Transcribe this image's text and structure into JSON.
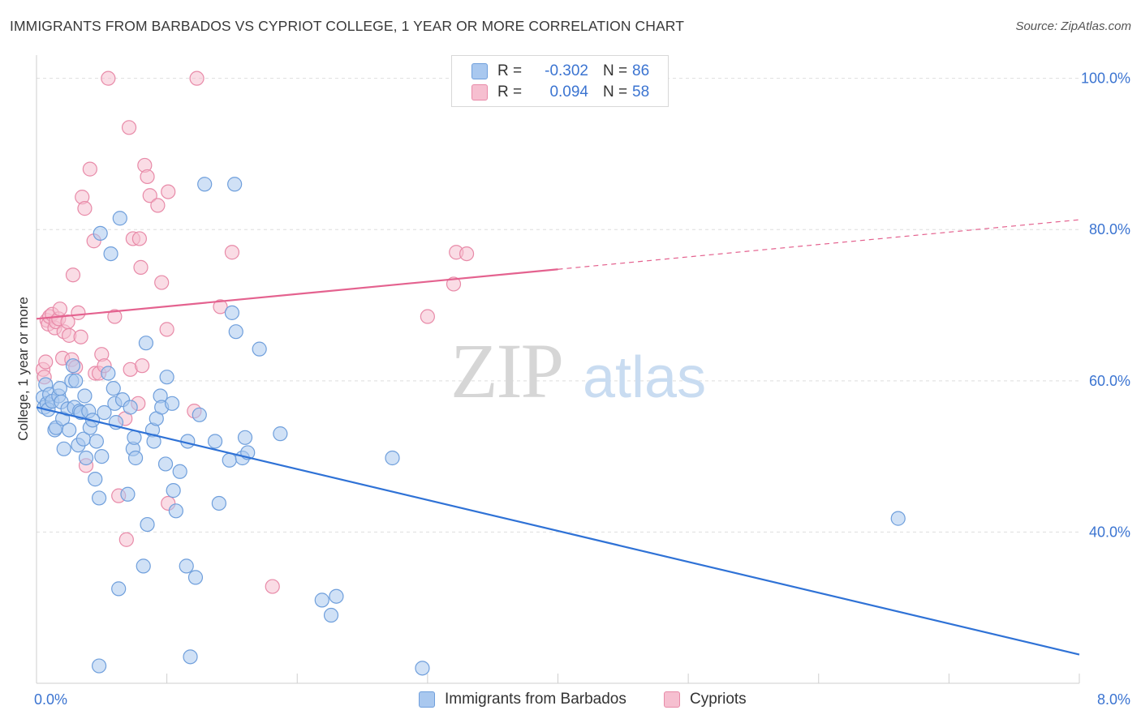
{
  "title": "IMMIGRANTS FROM BARBADOS VS CYPRIOT COLLEGE, 1 YEAR OR MORE CORRELATION CHART",
  "source": "Source: ZipAtlas.com",
  "watermark": {
    "zip": "ZIP",
    "atlas": "atlas"
  },
  "colors": {
    "blue_fill": "#a9c8ef",
    "blue_stroke": "#6f9fdc",
    "blue_line": "#2f72d6",
    "pink_fill": "#f6bfd0",
    "pink_stroke": "#e88aa8",
    "pink_line": "#e4628f",
    "value_text": "#3b74d1",
    "grid": "#dedede"
  },
  "legend": {
    "rows": [
      {
        "r_label": "R =",
        "r_value": "-0.302",
        "n_label": "N =",
        "n_value": "86"
      },
      {
        "r_label": "R =",
        "r_value": "0.094",
        "n_label": "N =",
        "n_value": "58"
      }
    ]
  },
  "bottom_legend": [
    "Immigrants from Barbados",
    "Cypriots"
  ],
  "chart_data": {
    "type": "scatter",
    "title": "IMMIGRANTS FROM BARBADOS VS CYPRIOT COLLEGE, 1 YEAR OR MORE CORRELATION CHART",
    "xlabel": "",
    "ylabel": "College, 1 year or more",
    "xlim": [
      0,
      8
    ],
    "ylim": [
      20,
      102
    ],
    "x_tick_labels": [
      "0.0%",
      "8.0%"
    ],
    "y_ticks": [
      40,
      60,
      80,
      100
    ],
    "y_tick_labels": [
      "40.0%",
      "60.0%",
      "80.0%",
      "100.0%"
    ],
    "series": [
      {
        "name": "Immigrants from Barbados",
        "color": "blue",
        "R": -0.302,
        "N": 86,
        "trend": {
          "x0": 0.0,
          "y0": 56.5,
          "x1": 8.0,
          "y1": 23.8,
          "solid_to": 8.0
        },
        "points": [
          [
            0.05,
            57.8
          ],
          [
            0.06,
            56.5
          ],
          [
            0.07,
            59.5
          ],
          [
            0.08,
            57.0
          ],
          [
            0.09,
            56.2
          ],
          [
            0.1,
            58.2
          ],
          [
            0.12,
            57.3
          ],
          [
            0.14,
            53.5
          ],
          [
            0.15,
            53.8
          ],
          [
            0.17,
            58.0
          ],
          [
            0.18,
            59.0
          ],
          [
            0.19,
            57.2
          ],
          [
            0.2,
            55.0
          ],
          [
            0.21,
            51.0
          ],
          [
            0.24,
            56.3
          ],
          [
            0.25,
            53.5
          ],
          [
            0.27,
            60.0
          ],
          [
            0.28,
            62.0
          ],
          [
            0.29,
            56.5
          ],
          [
            0.3,
            60.0
          ],
          [
            0.32,
            51.5
          ],
          [
            0.33,
            56.0
          ],
          [
            0.34,
            55.8
          ],
          [
            0.36,
            52.3
          ],
          [
            0.37,
            58.0
          ],
          [
            0.38,
            49.8
          ],
          [
            0.4,
            56.0
          ],
          [
            0.41,
            53.8
          ],
          [
            0.43,
            54.8
          ],
          [
            0.45,
            47.0
          ],
          [
            0.46,
            52.0
          ],
          [
            0.48,
            44.5
          ],
          [
            0.49,
            79.5
          ],
          [
            0.5,
            50.0
          ],
          [
            0.52,
            55.8
          ],
          [
            0.55,
            61.0
          ],
          [
            0.57,
            76.8
          ],
          [
            0.59,
            59.0
          ],
          [
            0.6,
            57.0
          ],
          [
            0.61,
            54.5
          ],
          [
            0.63,
            32.5
          ],
          [
            0.64,
            81.5
          ],
          [
            0.66,
            57.5
          ],
          [
            0.7,
            45.0
          ],
          [
            0.72,
            56.5
          ],
          [
            0.74,
            51.0
          ],
          [
            0.75,
            52.5
          ],
          [
            0.76,
            49.8
          ],
          [
            0.82,
            35.5
          ],
          [
            0.84,
            65.0
          ],
          [
            0.85,
            41.0
          ],
          [
            0.89,
            53.5
          ],
          [
            0.9,
            52.0
          ],
          [
            0.92,
            55.0
          ],
          [
            0.95,
            58.0
          ],
          [
            0.96,
            56.5
          ],
          [
            0.99,
            49.0
          ],
          [
            1.0,
            60.5
          ],
          [
            1.04,
            57.0
          ],
          [
            1.05,
            45.5
          ],
          [
            1.07,
            42.8
          ],
          [
            1.1,
            48.0
          ],
          [
            1.15,
            35.5
          ],
          [
            1.16,
            52.0
          ],
          [
            1.18,
            23.5
          ],
          [
            1.22,
            34.0
          ],
          [
            1.25,
            55.5
          ],
          [
            1.29,
            86.0
          ],
          [
            1.37,
            52.0
          ],
          [
            1.4,
            43.8
          ],
          [
            1.48,
            49.5
          ],
          [
            1.5,
            69.0
          ],
          [
            1.52,
            86.0
          ],
          [
            1.53,
            66.5
          ],
          [
            1.58,
            49.8
          ],
          [
            1.6,
            52.5
          ],
          [
            1.62,
            50.5
          ],
          [
            1.71,
            64.2
          ],
          [
            1.87,
            53.0
          ],
          [
            2.19,
            31.0
          ],
          [
            2.26,
            29.0
          ],
          [
            2.3,
            31.5
          ],
          [
            2.73,
            49.8
          ],
          [
            2.96,
            22.0
          ],
          [
            6.61,
            41.8
          ],
          [
            0.48,
            22.3
          ]
        ]
      },
      {
        "name": "Cypriots",
        "color": "pink",
        "R": 0.094,
        "N": 58,
        "trend": {
          "x0": 0.0,
          "y0": 68.2,
          "x1": 8.0,
          "y1": 81.3,
          "solid_to": 4.0
        },
        "points": [
          [
            0.05,
            61.5
          ],
          [
            0.06,
            60.5
          ],
          [
            0.07,
            62.5
          ],
          [
            0.08,
            68.0
          ],
          [
            0.09,
            67.5
          ],
          [
            0.1,
            68.5
          ],
          [
            0.12,
            68.8
          ],
          [
            0.14,
            67.0
          ],
          [
            0.15,
            67.8
          ],
          [
            0.17,
            68.2
          ],
          [
            0.18,
            69.5
          ],
          [
            0.2,
            63.0
          ],
          [
            0.21,
            66.5
          ],
          [
            0.24,
            67.8
          ],
          [
            0.25,
            66.0
          ],
          [
            0.27,
            62.8
          ],
          [
            0.28,
            74.0
          ],
          [
            0.3,
            61.8
          ],
          [
            0.32,
            69.0
          ],
          [
            0.34,
            65.8
          ],
          [
            0.35,
            84.3
          ],
          [
            0.37,
            82.8
          ],
          [
            0.38,
            48.8
          ],
          [
            0.41,
            88.0
          ],
          [
            0.44,
            78.5
          ],
          [
            0.45,
            61.0
          ],
          [
            0.48,
            61.0
          ],
          [
            0.5,
            63.5
          ],
          [
            0.52,
            62.0
          ],
          [
            0.55,
            100.0
          ],
          [
            0.6,
            68.5
          ],
          [
            0.63,
            44.8
          ],
          [
            0.68,
            55.0
          ],
          [
            0.69,
            39.0
          ],
          [
            0.71,
            93.5
          ],
          [
            0.72,
            61.5
          ],
          [
            0.74,
            78.8
          ],
          [
            0.78,
            57.0
          ],
          [
            0.79,
            78.8
          ],
          [
            0.8,
            75.0
          ],
          [
            0.81,
            62.0
          ],
          [
            0.83,
            88.5
          ],
          [
            0.85,
            87.0
          ],
          [
            0.87,
            84.5
          ],
          [
            0.93,
            83.2
          ],
          [
            0.96,
            73.0
          ],
          [
            1.0,
            66.8
          ],
          [
            1.01,
            85.0
          ],
          [
            1.01,
            43.8
          ],
          [
            1.21,
            56.0
          ],
          [
            1.23,
            100.0
          ],
          [
            1.41,
            69.8
          ],
          [
            1.5,
            77.0
          ],
          [
            1.81,
            32.8
          ],
          [
            3.0,
            68.5
          ],
          [
            3.2,
            72.8
          ],
          [
            3.22,
            77.0
          ],
          [
            3.3,
            76.8
          ]
        ]
      }
    ]
  }
}
